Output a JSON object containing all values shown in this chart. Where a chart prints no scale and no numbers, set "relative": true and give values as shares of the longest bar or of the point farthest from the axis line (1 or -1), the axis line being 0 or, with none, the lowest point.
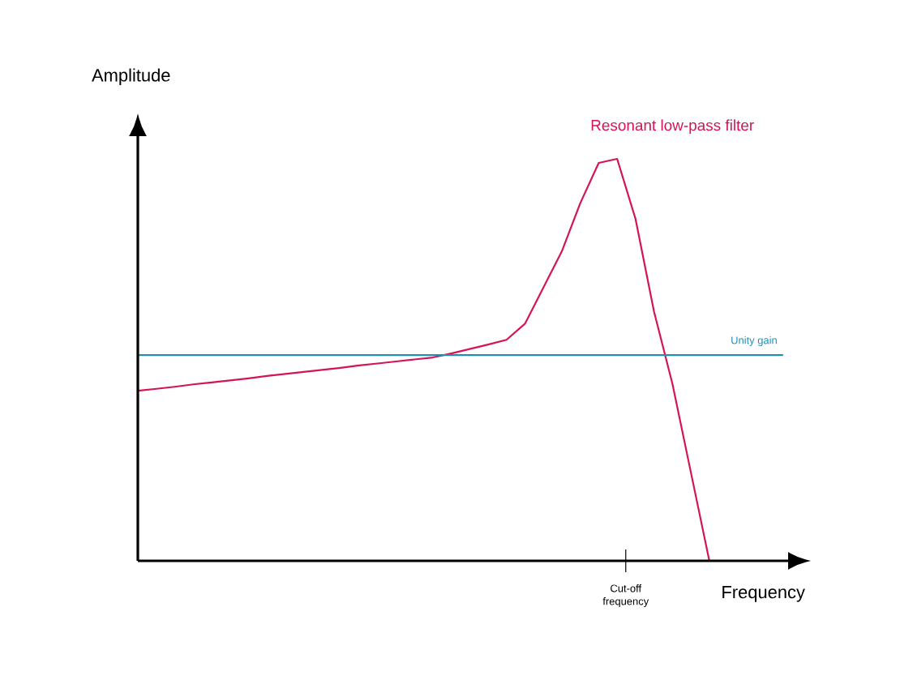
{
  "chart_data": {
    "type": "line",
    "relative": true,
    "xlabel": "Frequency",
    "ylabel": "Amplitude",
    "annotations": [
      "Cut-off frequency"
    ],
    "categories": [
      null,
      null,
      null,
      null,
      null,
      null,
      null,
      null,
      null,
      null,
      null,
      null,
      null,
      null,
      null,
      null,
      null,
      null,
      null,
      null,
      null,
      null,
      null,
      null,
      null,
      null,
      null,
      null,
      null,
      null,
      null,
      null,
      null,
      null,
      null,
      null
    ],
    "series": [
      {
        "name": "Resonant low-pass filter",
        "color": "#d4145a",
        "values": [
          0.423,
          0.428,
          0.433,
          0.439,
          0.444,
          0.449,
          0.454,
          0.46,
          0.465,
          0.47,
          0.475,
          0.48,
          0.486,
          0.491,
          0.496,
          0.501,
          0.506,
          0.516,
          0.527,
          0.538,
          0.55,
          0.59,
          0.68,
          0.77,
          0.89,
          0.99,
          1.0,
          0.85,
          0.62,
          0.44,
          0.22,
          0,
          null,
          null,
          null,
          null
        ]
      },
      {
        "name": "Unity gain",
        "color": "#1f8fb5",
        "values": [
          0.512,
          0.512,
          0.512,
          0.512,
          0.512,
          0.512,
          0.512,
          0.512,
          0.512,
          0.512,
          0.512,
          0.512,
          0.512,
          0.512,
          0.512,
          0.512,
          0.512,
          0.512,
          0.512,
          0.512,
          0.512,
          0.512,
          0.512,
          0.512,
          0.512,
          0.512,
          0.512,
          0.512,
          0.512,
          0.512,
          0.512,
          0.512,
          0.512,
          0.512,
          0.512,
          0.512
        ]
      }
    ]
  }
}
